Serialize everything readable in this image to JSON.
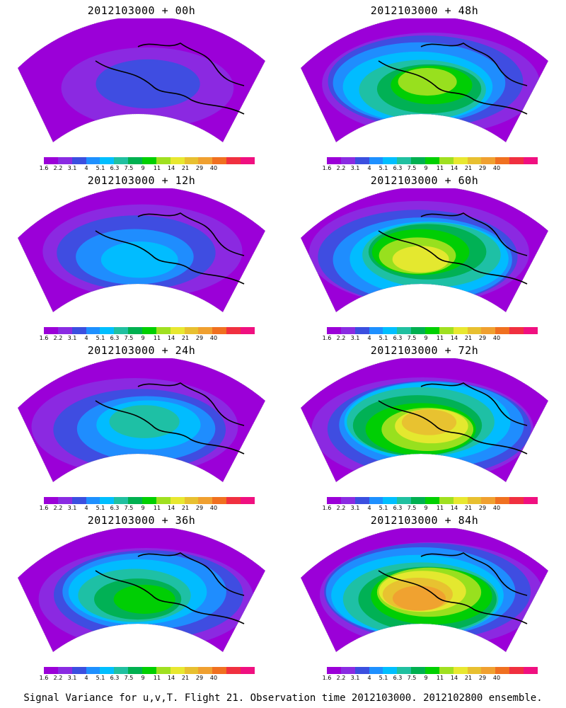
{
  "panels": [
    {
      "title": "2012103000 + 00h",
      "intensity": 0.15
    },
    {
      "title": "2012103000 + 48h",
      "intensity": 0.65
    },
    {
      "title": "2012103000 + 12h",
      "intensity": 0.3
    },
    {
      "title": "2012103000 + 60h",
      "intensity": 0.75
    },
    {
      "title": "2012103000 + 24h",
      "intensity": 0.4
    },
    {
      "title": "2012103000 + 72h",
      "intensity": 0.85
    },
    {
      "title": "2012103000 + 36h",
      "intensity": 0.55
    },
    {
      "title": "2012103000 + 84h",
      "intensity": 0.9
    }
  ],
  "colorbar": {
    "colors": [
      "#9b00d8",
      "#8a2be2",
      "#3b4fe0",
      "#1e90ff",
      "#00bfff",
      "#20c0a0",
      "#00b050",
      "#00d000",
      "#a0e020",
      "#e8e830",
      "#e8c030",
      "#f0a030",
      "#f07020",
      "#f03040",
      "#f01080"
    ],
    "ticks": [
      "1.6",
      "2.2",
      "3.1",
      "4",
      "5.1",
      "6.3",
      "7.5",
      "9",
      "11",
      "14",
      "21",
      "29",
      "40"
    ]
  },
  "footer": "Signal Variance for u,v,T. Flight 21. Observation time 2012103000. 2012102800 ensemble."
}
